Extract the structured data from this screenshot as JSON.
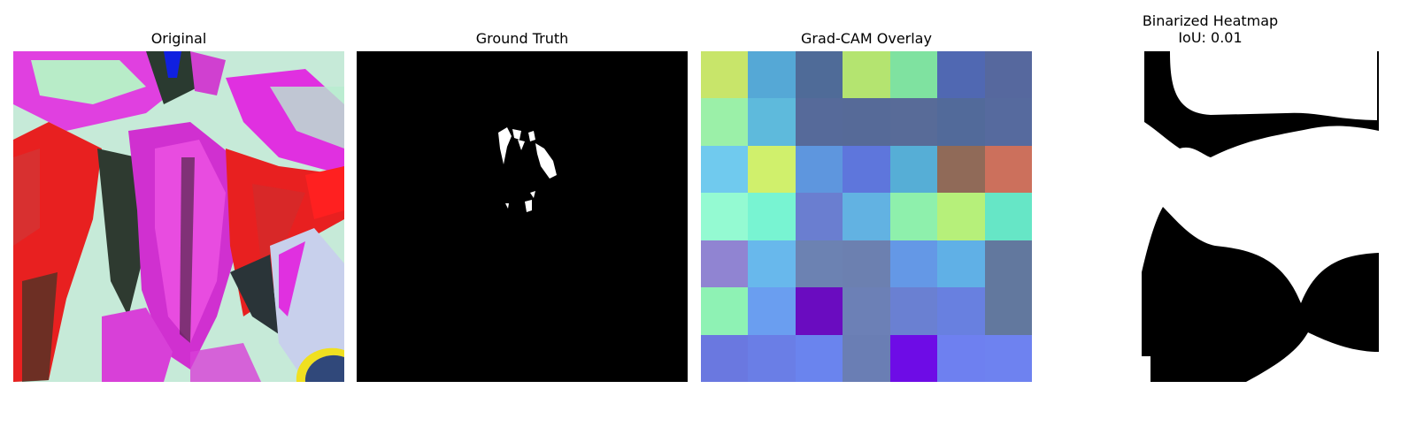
{
  "panels": [
    {
      "title": "Original"
    },
    {
      "title": "Ground Truth"
    },
    {
      "title": "Grad-CAM Overlay"
    },
    {
      "title": "Binarized Heatmap\nIoU: 0.01"
    }
  ],
  "gradcam_grid": [
    [
      "#c8e56a",
      "#55a8d6",
      "#4f6b98",
      "#b4e470",
      "#7fe2a0",
      "#5068b2",
      "#56689e"
    ],
    [
      "#9bf0a8",
      "#5ebadc",
      "#566a9a",
      "#566a98",
      "#586b98",
      "#526a9a",
      "#566a9e"
    ],
    [
      "#70caee",
      "#d0f06c",
      "#5e96de",
      "#5e76dc",
      "#56aed6",
      "#906a58",
      "#cc705c"
    ],
    [
      "#94fad2",
      "#78f4d2",
      "#6a7ed0",
      "#62b2e2",
      "#8ef0ac",
      "#b6f07a",
      "#66e6c6"
    ],
    [
      "#9084d2",
      "#68b8ec",
      "#6c82b2",
      "#6c80b0",
      "#6498e6",
      "#60b0e6",
      "#62789e"
    ],
    [
      "#8ef2b4",
      "#6a9ef0",
      "#6a0cc0",
      "#6c80b6",
      "#6a80d2",
      "#6880e0",
      "#62789e"
    ],
    [
      "#6a78e0",
      "#6a7ee6",
      "#6a84ee",
      "#6a7eb4",
      "#6e0ce6",
      "#6e80f0",
      "#6e82f0"
    ]
  ]
}
